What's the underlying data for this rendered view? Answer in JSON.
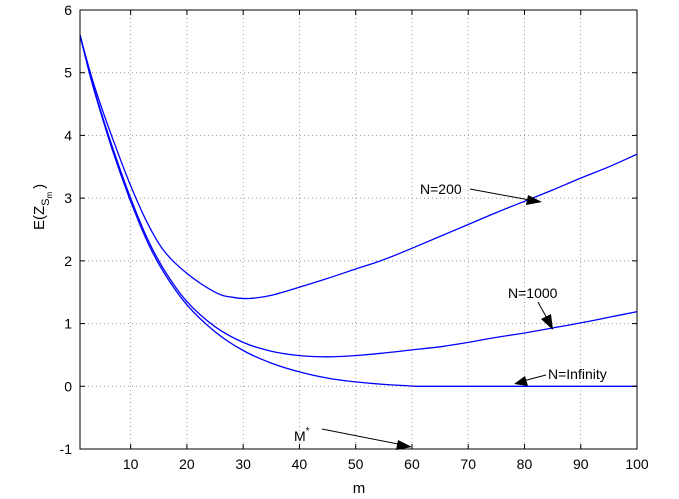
{
  "colors": {
    "line": "#0000ff",
    "axis": "#000000",
    "grid": "#9a9a9a"
  },
  "chart_data": {
    "type": "line",
    "title": "",
    "xlabel": "m",
    "ylabel_main": "E(Z",
    "ylabel_sub1": "S",
    "ylabel_sub2": "m",
    "ylabel_close": ")",
    "xlim": [
      1,
      100
    ],
    "ylim": [
      -1,
      6
    ],
    "xticks": [
      10,
      20,
      30,
      40,
      50,
      60,
      70,
      80,
      90,
      100
    ],
    "yticks": [
      -1,
      0,
      1,
      2,
      3,
      4,
      5,
      6
    ],
    "grid": true,
    "series": [
      {
        "name": "N=200",
        "x": [
          1,
          3,
          5,
          7,
          10,
          13,
          16,
          20,
          25,
          28,
          31,
          35,
          40,
          45,
          50,
          55,
          60,
          65,
          70,
          75,
          80,
          85,
          90,
          95,
          100
        ],
        "y": [
          5.6,
          4.95,
          4.4,
          3.9,
          3.2,
          2.6,
          2.15,
          1.8,
          1.5,
          1.42,
          1.4,
          1.45,
          1.58,
          1.72,
          1.87,
          2.02,
          2.2,
          2.39,
          2.58,
          2.77,
          2.95,
          3.13,
          3.32,
          3.5,
          3.7
        ]
      },
      {
        "name": "N=1000",
        "x": [
          1,
          3,
          5,
          7,
          10,
          13,
          16,
          20,
          25,
          30,
          35,
          40,
          45,
          50,
          55,
          60,
          65,
          70,
          75,
          80,
          85,
          90,
          95,
          100
        ],
        "y": [
          5.6,
          4.9,
          4.3,
          3.75,
          3.0,
          2.35,
          1.85,
          1.35,
          0.95,
          0.7,
          0.56,
          0.49,
          0.47,
          0.49,
          0.53,
          0.58,
          0.63,
          0.7,
          0.78,
          0.85,
          0.93,
          1.01,
          1.1,
          1.19
        ]
      },
      {
        "name": "N=Infinity",
        "x": [
          1,
          3,
          5,
          7,
          10,
          13,
          16,
          20,
          25,
          30,
          35,
          40,
          45,
          50,
          55,
          60,
          61,
          70,
          80,
          90,
          100
        ],
        "y": [
          5.6,
          4.88,
          4.27,
          3.7,
          2.95,
          2.3,
          1.8,
          1.3,
          0.87,
          0.57,
          0.37,
          0.23,
          0.13,
          0.07,
          0.03,
          0.005,
          0.0,
          0.0,
          0.0,
          0.0,
          0.0
        ]
      }
    ],
    "annotations": [
      {
        "text": "N=200",
        "at": [
          83,
          2.97
        ]
      },
      {
        "text": "N=1000",
        "at": [
          85,
          0.9
        ]
      },
      {
        "text": "N=Infinity",
        "at": [
          76,
          0.02
        ]
      },
      {
        "text": "M",
        "sup": "*",
        "at": [
          61,
          -0.98
        ]
      }
    ]
  }
}
